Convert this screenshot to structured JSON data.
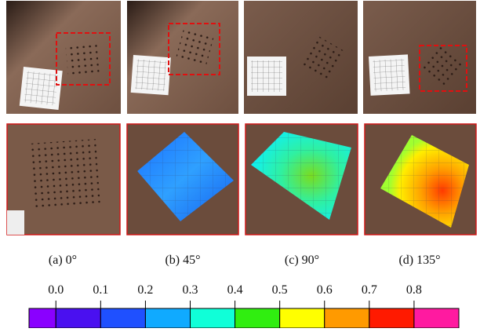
{
  "captions": [
    "(a)  0°",
    "(b)  45°",
    "(c)  90°",
    "(d)  135°"
  ],
  "colorbar": {
    "lim": [
      -0.06,
      0.9
    ],
    "ticks": [
      {
        "value": 0,
        "label": "0.0"
      },
      {
        "value": 0.1,
        "label": "0.1"
      },
      {
        "value": 0.2,
        "label": "0.2"
      },
      {
        "value": 0.3,
        "label": "0.3"
      },
      {
        "value": 0.4,
        "label": "0.4"
      },
      {
        "value": 0.5,
        "label": "0.5"
      },
      {
        "value": 0.6,
        "label": "0.6"
      },
      {
        "value": 0.7,
        "label": "0.7"
      },
      {
        "value": 0.8,
        "label": "0.8"
      }
    ],
    "colors": [
      "#8a00ff",
      "#4a10f0",
      "#1f50ff",
      "#10aaff",
      "#10ffd8",
      "#30ee10",
      "#ffff00",
      "#ff9a00",
      "#ff1a00",
      "#ff1aa0"
    ]
  }
}
